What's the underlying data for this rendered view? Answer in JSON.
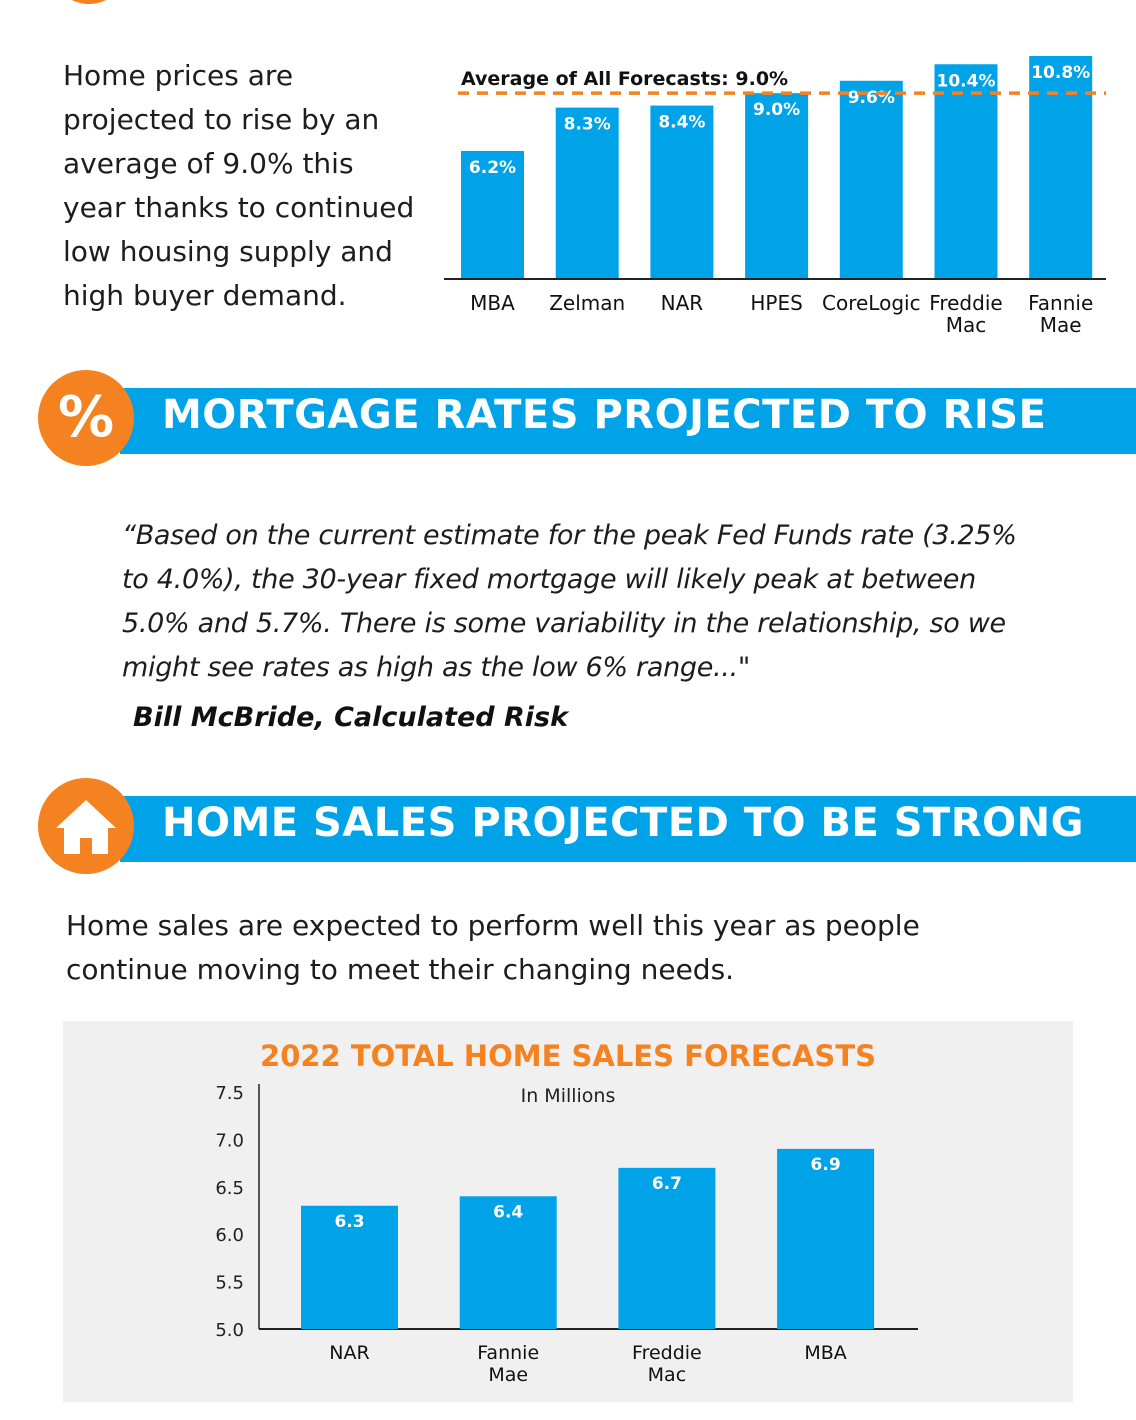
{
  "intro": {
    "text": "Home prices are projected to rise by an average of 9.0% this year thanks to continued low housing supply and high buyer demand."
  },
  "mortgage_section": {
    "title": "MORTGAGE RATES PROJECTED TO RISE",
    "badge_symbol": "%",
    "quote": "“Based on the current estimate for the peak Fed Funds rate (3.25% to 4.0%), the 30-year fixed mortgage will likely peak at between 5.0% and 5.7%. There is some variability in the relationship, so we might see rates as high as the low 6% range...\"",
    "attribution": "Bill McBride, Calculated Risk"
  },
  "sales_section": {
    "title": "HOME SALES PROJECTED TO BE STRONG",
    "badge_icon": "house-icon",
    "text": "Home sales are expected to perform well this year as people continue moving to meet their changing needs."
  },
  "colors": {
    "accent_blue": "#00a3e8",
    "accent_orange": "#f58220"
  },
  "chart_data": [
    {
      "type": "bar",
      "categories": [
        "MBA",
        "Zelman",
        "NAR",
        "HPES",
        "CoreLogic",
        "Freddie Mac",
        "Fannie Mae"
      ],
      "values": [
        6.2,
        8.3,
        8.4,
        9.0,
        9.6,
        10.4,
        10.8
      ],
      "data_labels": [
        "6.2%",
        "8.3%",
        "8.4%",
        "9.0%",
        "9.6%",
        "10.4%",
        "10.8%"
      ],
      "annotation": "Average of All Forecasts: 9.0%",
      "reference_line": 9.0,
      "title": "",
      "xlabel": "",
      "ylabel": "",
      "ylim": [
        0,
        10.8
      ],
      "grid": false
    },
    {
      "type": "bar",
      "title": "2022 TOTAL HOME SALES FORECASTS",
      "subtitle": "In Millions",
      "categories": [
        "NAR",
        "Fannie Mae",
        "Freddie Mac",
        "MBA"
      ],
      "values": [
        6.3,
        6.4,
        6.7,
        6.9
      ],
      "data_labels": [
        "6.3",
        "6.4",
        "6.7",
        "6.9"
      ],
      "yticks": [
        "7.5",
        "7.0",
        "6.5",
        "6.0",
        "5.5",
        "5.0"
      ],
      "ylim": [
        5.0,
        7.5
      ],
      "xlabel": "",
      "ylabel": "",
      "grid": false
    }
  ]
}
